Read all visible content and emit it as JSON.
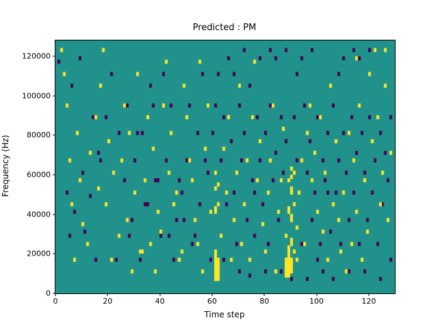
{
  "chart_data": {
    "type": "heatmap",
    "title": "Predicted : PM",
    "xlabel": "Time step",
    "ylabel": "Frequency (Hz)",
    "x_range": [
      0,
      130
    ],
    "y_range": [
      0,
      128000
    ],
    "x_ticks": [
      0,
      20,
      40,
      60,
      80,
      100,
      120
    ],
    "y_ticks": [
      0,
      20000,
      40000,
      60000,
      80000,
      100000,
      120000
    ],
    "grid": {
      "cols": 130,
      "rows": 64,
      "freq_bin_hz": 2000,
      "gridlines": "off"
    },
    "legend": "none",
    "colors": {
      "background": "#21918c",
      "high": "#fde725",
      "low": "#440154"
    },
    "value_levels": {
      "background": 0.5,
      "high": 1.0,
      "low": 0.0
    },
    "cells_high": [
      [
        2,
        61
      ],
      [
        3,
        55
      ],
      [
        4,
        47
      ],
      [
        8,
        40
      ],
      [
        5,
        33
      ],
      [
        9,
        28
      ],
      [
        6,
        22
      ],
      [
        10,
        17
      ],
      [
        12,
        12
      ],
      [
        7,
        8
      ],
      [
        13,
        35
      ],
      [
        16,
        26
      ],
      [
        18,
        61
      ],
      [
        17,
        52
      ],
      [
        15,
        44
      ],
      [
        20,
        38
      ],
      [
        22,
        30
      ],
      [
        19,
        22
      ],
      [
        24,
        14
      ],
      [
        21,
        8
      ],
      [
        26,
        47
      ],
      [
        28,
        40
      ],
      [
        25,
        33
      ],
      [
        30,
        25
      ],
      [
        27,
        18
      ],
      [
        32,
        10
      ],
      [
        33,
        10
      ],
      [
        29,
        5
      ],
      [
        31,
        55
      ],
      [
        35,
        44
      ],
      [
        37,
        36
      ],
      [
        34,
        28
      ],
      [
        39,
        20
      ],
      [
        36,
        12
      ],
      [
        38,
        5
      ],
      [
        41,
        47
      ],
      [
        43,
        30
      ],
      [
        45,
        22
      ],
      [
        40,
        15
      ],
      [
        47,
        8
      ],
      [
        42,
        58
      ],
      [
        49,
        52
      ],
      [
        44,
        40
      ],
      [
        51,
        33
      ],
      [
        46,
        25
      ],
      [
        53,
        18
      ],
      [
        48,
        10
      ],
      [
        55,
        58
      ],
      [
        50,
        44
      ],
      [
        57,
        36
      ],
      [
        52,
        28
      ],
      [
        59,
        20
      ],
      [
        54,
        12
      ],
      [
        56,
        5
      ],
      [
        58,
        47
      ],
      [
        61,
        3
      ],
      [
        61,
        4
      ],
      [
        61,
        5
      ],
      [
        61,
        6
      ],
      [
        61,
        7
      ],
      [
        61,
        8
      ],
      [
        61,
        9
      ],
      [
        61,
        10
      ],
      [
        62,
        3
      ],
      [
        62,
        4
      ],
      [
        62,
        5
      ],
      [
        62,
        6
      ],
      [
        62,
        7
      ],
      [
        62,
        8
      ],
      [
        61,
        20
      ],
      [
        61,
        21
      ],
      [
        62,
        22
      ],
      [
        61,
        26
      ],
      [
        62,
        27
      ],
      [
        61,
        30
      ],
      [
        63,
        14
      ],
      [
        65,
        25
      ],
      [
        64,
        36
      ],
      [
        67,
        8
      ],
      [
        66,
        44
      ],
      [
        69,
        30
      ],
      [
        68,
        18
      ],
      [
        70,
        52
      ],
      [
        71,
        12
      ],
      [
        73,
        33
      ],
      [
        72,
        22
      ],
      [
        75,
        44
      ],
      [
        74,
        8
      ],
      [
        77,
        28
      ],
      [
        76,
        58
      ],
      [
        79,
        17
      ],
      [
        78,
        38
      ],
      [
        81,
        25
      ],
      [
        80,
        10
      ],
      [
        83,
        47
      ],
      [
        82,
        33
      ],
      [
        85,
        20
      ],
      [
        84,
        5
      ],
      [
        87,
        41
      ],
      [
        86,
        28
      ],
      [
        88,
        4
      ],
      [
        88,
        5
      ],
      [
        88,
        6
      ],
      [
        88,
        7
      ],
      [
        88,
        8
      ],
      [
        88,
        14
      ],
      [
        89,
        4
      ],
      [
        89,
        5
      ],
      [
        89,
        6
      ],
      [
        89,
        7
      ],
      [
        89,
        8
      ],
      [
        89,
        9
      ],
      [
        89,
        10
      ],
      [
        89,
        11
      ],
      [
        89,
        20
      ],
      [
        89,
        21
      ],
      [
        89,
        28
      ],
      [
        90,
        5
      ],
      [
        90,
        6
      ],
      [
        90,
        7
      ],
      [
        90,
        8
      ],
      [
        90,
        12
      ],
      [
        90,
        13
      ],
      [
        90,
        18
      ],
      [
        90,
        19
      ],
      [
        90,
        25
      ],
      [
        90,
        26
      ],
      [
        90,
        29
      ],
      [
        90,
        31
      ],
      [
        91,
        10
      ],
      [
        91,
        22
      ],
      [
        91,
        30
      ],
      [
        92,
        8
      ],
      [
        92,
        16
      ],
      [
        94,
        33
      ],
      [
        93,
        25
      ],
      [
        96,
        40
      ],
      [
        95,
        12
      ],
      [
        98,
        28
      ],
      [
        97,
        47
      ],
      [
        100,
        20
      ],
      [
        99,
        35
      ],
      [
        102,
        15
      ],
      [
        101,
        44
      ],
      [
        104,
        8
      ],
      [
        103,
        30
      ],
      [
        106,
        22
      ],
      [
        105,
        52
      ],
      [
        108,
        18
      ],
      [
        107,
        38
      ],
      [
        110,
        25
      ],
      [
        109,
        10
      ],
      [
        112,
        40
      ],
      [
        111,
        5
      ],
      [
        114,
        33
      ],
      [
        113,
        12
      ],
      [
        116,
        47
      ],
      [
        115,
        20
      ],
      [
        118,
        28
      ],
      [
        117,
        8
      ],
      [
        120,
        55
      ],
      [
        119,
        15
      ],
      [
        122,
        61
      ],
      [
        121,
        38
      ],
      [
        124,
        22
      ],
      [
        123,
        44
      ],
      [
        126,
        61
      ],
      [
        125,
        30
      ],
      [
        128,
        35
      ],
      [
        127,
        18
      ],
      [
        126,
        52
      ],
      [
        115,
        59
      ]
    ],
    "cells_low": [
      [
        1,
        58
      ],
      [
        4,
        25
      ],
      [
        6,
        52
      ],
      [
        5,
        14
      ],
      [
        9,
        59
      ],
      [
        7,
        20
      ],
      [
        14,
        44
      ],
      [
        10,
        30
      ],
      [
        16,
        35
      ],
      [
        11,
        15
      ],
      [
        21,
        55
      ],
      [
        13,
        24
      ],
      [
        24,
        40
      ],
      [
        15,
        8
      ],
      [
        27,
        47
      ],
      [
        17,
        33
      ],
      [
        23,
        8
      ],
      [
        19,
        44
      ],
      [
        29,
        18
      ],
      [
        26,
        28
      ],
      [
        31,
        40
      ],
      [
        28,
        14
      ],
      [
        34,
        22
      ],
      [
        30,
        33
      ],
      [
        36,
        52
      ],
      [
        32,
        8
      ],
      [
        38,
        28
      ],
      [
        33,
        40
      ],
      [
        40,
        14
      ],
      [
        35,
        22
      ],
      [
        42,
        33
      ],
      [
        37,
        47
      ],
      [
        44,
        47
      ],
      [
        39,
        28
      ],
      [
        46,
        18
      ],
      [
        41,
        55
      ],
      [
        48,
        25
      ],
      [
        43,
        14
      ],
      [
        50,
        33
      ],
      [
        45,
        8
      ],
      [
        52,
        12
      ],
      [
        47,
        28
      ],
      [
        54,
        40
      ],
      [
        49,
        18
      ],
      [
        56,
        55
      ],
      [
        51,
        47
      ],
      [
        58,
        30
      ],
      [
        53,
        14
      ],
      [
        60,
        40
      ],
      [
        55,
        22
      ],
      [
        62,
        55
      ],
      [
        57,
        33
      ],
      [
        61,
        47
      ],
      [
        59,
        8
      ],
      [
        63,
        33
      ],
      [
        64,
        44
      ],
      [
        65,
        22
      ],
      [
        64,
        8
      ],
      [
        66,
        59
      ],
      [
        67,
        38
      ],
      [
        68,
        25
      ],
      [
        68,
        55
      ],
      [
        69,
        12
      ],
      [
        70,
        47
      ],
      [
        70,
        5
      ],
      [
        71,
        33
      ],
      [
        72,
        40
      ],
      [
        72,
        61
      ],
      [
        73,
        18
      ],
      [
        74,
        52
      ],
      [
        74,
        4
      ],
      [
        75,
        28
      ],
      [
        76,
        14
      ],
      [
        76,
        25
      ],
      [
        77,
        44
      ],
      [
        78,
        33
      ],
      [
        78,
        59
      ],
      [
        79,
        22
      ],
      [
        80,
        40
      ],
      [
        80,
        5
      ],
      [
        81,
        12
      ],
      [
        82,
        47
      ],
      [
        82,
        61
      ],
      [
        83,
        28
      ],
      [
        84,
        35
      ],
      [
        84,
        59
      ],
      [
        85,
        18
      ],
      [
        86,
        44
      ],
      [
        86,
        5
      ],
      [
        87,
        30
      ],
      [
        88,
        38
      ],
      [
        88,
        61
      ],
      [
        90,
        3
      ],
      [
        91,
        44
      ],
      [
        92,
        33
      ],
      [
        92,
        55
      ],
      [
        93,
        25
      ],
      [
        94,
        12
      ],
      [
        94,
        59
      ],
      [
        95,
        47
      ],
      [
        96,
        30
      ],
      [
        96,
        3
      ],
      [
        97,
        38
      ],
      [
        98,
        18
      ],
      [
        98,
        61
      ],
      [
        99,
        25
      ],
      [
        100,
        44
      ],
      [
        100,
        8
      ],
      [
        101,
        12
      ],
      [
        102,
        33
      ],
      [
        102,
        5
      ],
      [
        103,
        28
      ],
      [
        104,
        40
      ],
      [
        104,
        25
      ],
      [
        105,
        15
      ],
      [
        106,
        47
      ],
      [
        106,
        3
      ],
      [
        107,
        25
      ],
      [
        108,
        33
      ],
      [
        108,
        55
      ],
      [
        109,
        12
      ],
      [
        110,
        40
      ],
      [
        110,
        59
      ],
      [
        111,
        30
      ],
      [
        112,
        18
      ],
      [
        112,
        5
      ],
      [
        113,
        44
      ],
      [
        114,
        25
      ],
      [
        114,
        61
      ],
      [
        115,
        35
      ],
      [
        116,
        12
      ],
      [
        116,
        59
      ],
      [
        117,
        40
      ],
      [
        118,
        30
      ],
      [
        118,
        5
      ],
      [
        119,
        18
      ],
      [
        120,
        44
      ],
      [
        120,
        61
      ],
      [
        121,
        25
      ],
      [
        122,
        33
      ],
      [
        123,
        12
      ],
      [
        124,
        40
      ],
      [
        124,
        3
      ],
      [
        125,
        22
      ],
      [
        126,
        35
      ],
      [
        127,
        28
      ],
      [
        128,
        44
      ],
      [
        128,
        8
      ]
    ]
  }
}
